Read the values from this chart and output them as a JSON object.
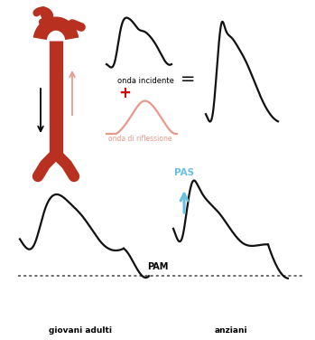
{
  "bg_color": "#ffffff",
  "aorta_color": "#b83020",
  "wave_color_black": "#111111",
  "wave_color_reflection": "#e8998a",
  "plus_color": "#cc0000",
  "arrow_color": "#6bbfdf",
  "dotted_line_color": "#444444",
  "label_giovani": "giovani adulti",
  "label_anziani": "anziani",
  "label_onda_incidente": "onda incidente",
  "label_onda_riflessione": "onda di riflessione",
  "label_pam": "PAM",
  "label_pas": "PAS",
  "label_plus": "+",
  "label_equals": "="
}
